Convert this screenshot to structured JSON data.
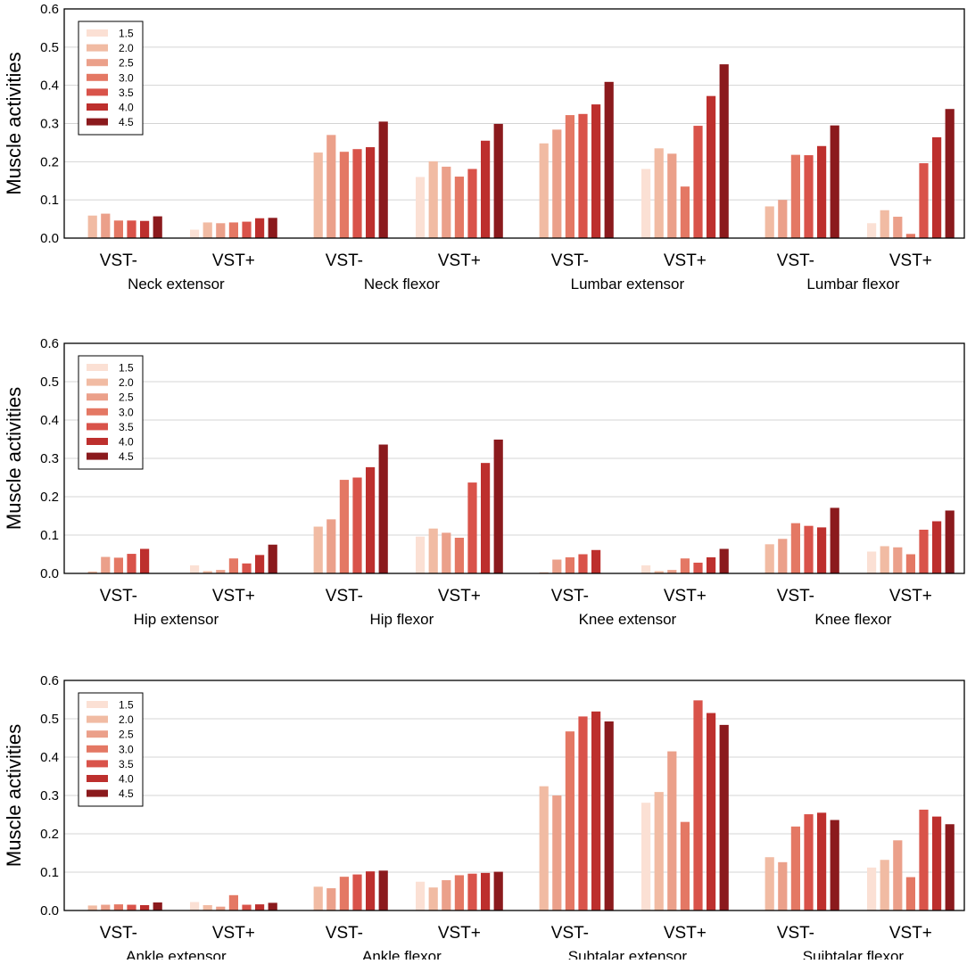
{
  "chart_data": [
    {
      "type": "bar",
      "ylabel": "Muscle activities",
      "ylim": [
        0,
        0.6
      ],
      "yticks": [
        "0.0",
        "0.1",
        "0.2",
        "0.3",
        "0.4",
        "0.5",
        "0.6"
      ],
      "grid": true,
      "legend_position": "top-left",
      "series_names": [
        "1.5",
        "2.0",
        "2.5",
        "3.0",
        "3.5",
        "4.0",
        "4.5"
      ],
      "series_colors": [
        "#fbe0d4",
        "#f1bba3",
        "#eba08a",
        "#e47864",
        "#d9534a",
        "#bd2f2d",
        "#8b1a1d"
      ],
      "groups": [
        {
          "muscle": "Neck extensor",
          "conditions": [
            {
              "label": "VST-",
              "values": [
                0.0,
                0.059,
                0.064,
                0.046,
                0.046,
                0.045,
                0.057
              ]
            },
            {
              "label": "VST+",
              "values": [
                0.022,
                0.041,
                0.039,
                0.041,
                0.043,
                0.052,
                0.053
              ]
            }
          ]
        },
        {
          "muscle": "Neck flexor",
          "conditions": [
            {
              "label": "VST-",
              "values": [
                0.0,
                0.224,
                0.27,
                0.226,
                0.233,
                0.238,
                0.305
              ]
            },
            {
              "label": "VST+",
              "values": [
                0.16,
                0.201,
                0.187,
                0.161,
                0.181,
                0.255,
                0.299
              ]
            }
          ]
        },
        {
          "muscle": "Lumbar extensor",
          "conditions": [
            {
              "label": "VST-",
              "values": [
                0.0,
                0.248,
                0.284,
                0.322,
                0.325,
                0.35,
                0.409
              ]
            },
            {
              "label": "VST+",
              "values": [
                0.181,
                0.235,
                0.221,
                0.135,
                0.294,
                0.372,
                0.455
              ]
            }
          ]
        },
        {
          "muscle": "Lumbar flexor",
          "conditions": [
            {
              "label": "VST-",
              "values": [
                0.0,
                0.083,
                0.1,
                0.218,
                0.217,
                0.241,
                0.295
              ]
            },
            {
              "label": "VST+",
              "values": [
                0.039,
                0.073,
                0.056,
                0.011,
                0.196,
                0.264,
                0.338
              ]
            }
          ]
        }
      ]
    },
    {
      "type": "bar",
      "ylabel": "Muscle activities",
      "ylim": [
        0,
        0.6
      ],
      "yticks": [
        "0.0",
        "0.1",
        "0.2",
        "0.3",
        "0.4",
        "0.5",
        "0.6"
      ],
      "grid": true,
      "legend_position": "top-left",
      "series_names": [
        "1.5",
        "2.0",
        "2.5",
        "3.0",
        "3.5",
        "4.0",
        "4.5"
      ],
      "series_colors": [
        "#fbe0d4",
        "#f1bba3",
        "#eba08a",
        "#e47864",
        "#d9534a",
        "#bd2f2d",
        "#8b1a1d"
      ],
      "groups": [
        {
          "muscle": "Hip extensor",
          "conditions": [
            {
              "label": "VST-",
              "values": [
                0.0,
                0.005,
                0.043,
                0.041,
                0.051,
                0.064,
                0.0
              ]
            },
            {
              "label": "VST+",
              "values": [
                0.021,
                0.006,
                0.009,
                0.039,
                0.026,
                0.048,
                0.075
              ]
            }
          ]
        },
        {
          "muscle": "Hip flexor",
          "conditions": [
            {
              "label": "VST-",
              "values": [
                0.0,
                0.122,
                0.141,
                0.244,
                0.25,
                0.277,
                0.336
              ]
            },
            {
              "label": "VST+",
              "values": [
                0.096,
                0.117,
                0.106,
                0.093,
                0.237,
                0.288,
                0.349
              ]
            }
          ]
        },
        {
          "muscle": "Knee extensor",
          "conditions": [
            {
              "label": "VST-",
              "values": [
                0.0,
                0.003,
                0.036,
                0.042,
                0.05,
                0.061,
                0.0
              ]
            },
            {
              "label": "VST+",
              "values": [
                0.021,
                0.006,
                0.009,
                0.039,
                0.028,
                0.042,
                0.064
              ]
            }
          ]
        },
        {
          "muscle": "Knee flexor",
          "conditions": [
            {
              "label": "VST-",
              "values": [
                0.0,
                0.076,
                0.09,
                0.131,
                0.124,
                0.12,
                0.171
              ]
            },
            {
              "label": "VST+",
              "values": [
                0.057,
                0.071,
                0.068,
                0.05,
                0.114,
                0.136,
                0.164
              ]
            }
          ]
        }
      ]
    },
    {
      "type": "bar",
      "ylabel": "Muscle activities",
      "ylim": [
        0,
        0.6
      ],
      "yticks": [
        "0.0",
        "0.1",
        "0.2",
        "0.3",
        "0.4",
        "0.5",
        "0.6"
      ],
      "grid": true,
      "legend_position": "top-left",
      "series_names": [
        "1.5",
        "2.0",
        "2.5",
        "3.0",
        "3.5",
        "4.0",
        "4.5"
      ],
      "series_colors": [
        "#fbe0d4",
        "#f1bba3",
        "#eba08a",
        "#e47864",
        "#d9534a",
        "#bd2f2d",
        "#8b1a1d"
      ],
      "groups": [
        {
          "muscle": "Ankle extensor",
          "conditions": [
            {
              "label": "VST-",
              "values": [
                0.0,
                0.013,
                0.015,
                0.016,
                0.015,
                0.014,
                0.021
              ]
            },
            {
              "label": "VST+",
              "values": [
                0.022,
                0.014,
                0.01,
                0.04,
                0.015,
                0.016,
                0.02
              ]
            }
          ]
        },
        {
          "muscle": "Ankle flexor",
          "conditions": [
            {
              "label": "VST-",
              "values": [
                0.0,
                0.062,
                0.058,
                0.088,
                0.094,
                0.102,
                0.104
              ]
            },
            {
              "label": "VST+",
              "values": [
                0.075,
                0.06,
                0.079,
                0.092,
                0.096,
                0.098,
                0.101
              ]
            }
          ]
        },
        {
          "muscle": "Subtalar extensor",
          "conditions": [
            {
              "label": "VST-",
              "values": [
                0.0,
                0.324,
                0.3,
                0.467,
                0.506,
                0.519,
                0.493
              ]
            },
            {
              "label": "VST+",
              "values": [
                0.281,
                0.309,
                0.415,
                0.231,
                0.548,
                0.515,
                0.484
              ]
            }
          ]
        },
        {
          "muscle": "Suibtalar flexor",
          "conditions": [
            {
              "label": "VST-",
              "values": [
                0.0,
                0.139,
                0.126,
                0.219,
                0.251,
                0.255,
                0.236
              ]
            },
            {
              "label": "VST+",
              "values": [
                0.112,
                0.132,
                0.183,
                0.087,
                0.263,
                0.245,
                0.225
              ]
            }
          ]
        }
      ]
    }
  ]
}
